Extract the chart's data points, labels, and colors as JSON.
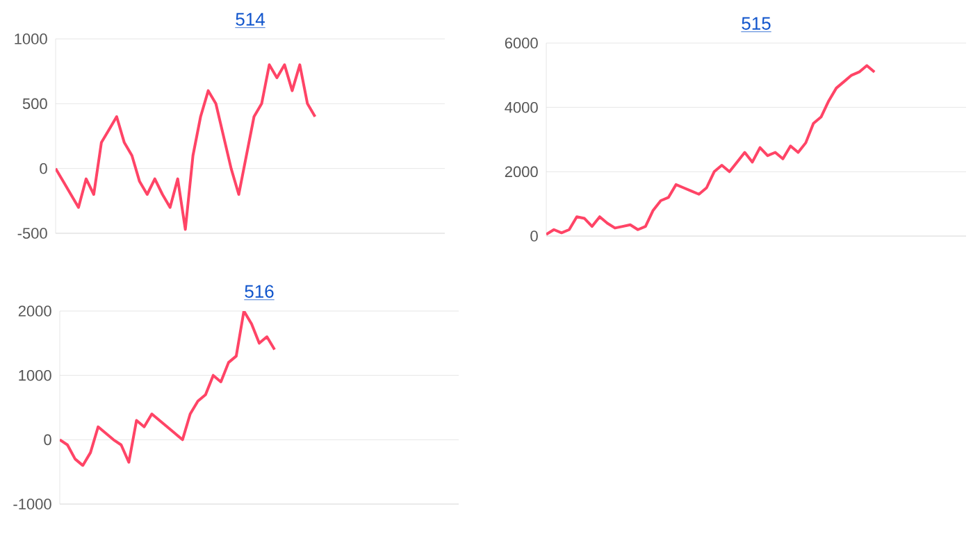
{
  "chart_data": [
    {
      "type": "line",
      "title": "514",
      "categories": [
        null,
        null,
        null,
        null,
        null,
        null,
        null,
        null,
        null,
        null,
        null,
        null,
        null,
        null,
        null,
        null,
        null,
        null,
        null,
        null,
        null,
        null,
        null,
        null,
        null,
        null,
        null,
        null,
        null,
        null,
        null,
        null,
        null,
        null,
        null,
        null,
        null,
        null,
        null,
        null,
        null,
        null,
        null,
        null,
        null,
        null,
        null,
        null,
        null,
        null,
        null,
        null
      ],
      "series": [
        {
          "color": "#ff4466",
          "values": [
            0,
            -100,
            -200,
            -300,
            -80,
            -200,
            200,
            300,
            400,
            200,
            100,
            -100,
            -200,
            -80,
            -200,
            -300,
            -80,
            -470,
            100,
            400,
            600,
            500,
            250,
            0,
            -200,
            100,
            400,
            500,
            800,
            700,
            800,
            600,
            800,
            500,
            400,
            null,
            null,
            null,
            null,
            null,
            null,
            null,
            null,
            null,
            null,
            null,
            null,
            null,
            null,
            null,
            null,
            null
          ]
        }
      ],
      "ylim": [
        -500,
        1000
      ],
      "yticks": [
        -500,
        0,
        500,
        1000
      ],
      "grid": "y",
      "tick_labels": "y"
    },
    {
      "type": "line",
      "title": "515",
      "categories": [
        null,
        null,
        null,
        null,
        null,
        null,
        null,
        null,
        null,
        null,
        null,
        null,
        null,
        null,
        null,
        null,
        null,
        null,
        null,
        null,
        null,
        null,
        null,
        null,
        null,
        null,
        null,
        null,
        null,
        null,
        null,
        null,
        null,
        null,
        null,
        null,
        null,
        null,
        null,
        null,
        null,
        null,
        null,
        null,
        null,
        null,
        null,
        null,
        null,
        null,
        null,
        null,
        null,
        null,
        null,
        null
      ],
      "series": [
        {
          "color": "#ff4466",
          "values": [
            50,
            200,
            100,
            200,
            600,
            550,
            300,
            600,
            400,
            250,
            300,
            350,
            200,
            300,
            800,
            1100,
            1200,
            1600,
            1500,
            1400,
            1300,
            1500,
            2000,
            2200,
            2000,
            2300,
            2600,
            2300,
            2750,
            2500,
            2600,
            2400,
            2800,
            2600,
            2900,
            3500,
            3700,
            4200,
            4600,
            4800,
            5000,
            5100,
            5300,
            5100,
            null,
            null,
            null,
            null,
            null,
            null,
            null,
            null,
            null,
            null,
            null,
            null
          ]
        }
      ],
      "ylim": [
        0,
        6000
      ],
      "yticks": [
        0,
        2000,
        4000,
        6000
      ],
      "grid": "y",
      "tick_labels": "y"
    },
    {
      "type": "line",
      "title": "516",
      "categories": [
        null,
        null,
        null,
        null,
        null,
        null,
        null,
        null,
        null,
        null,
        null,
        null,
        null,
        null,
        null,
        null,
        null,
        null,
        null,
        null,
        null,
        null,
        null,
        null,
        null,
        null,
        null,
        null,
        null,
        null,
        null,
        null,
        null,
        null,
        null,
        null,
        null,
        null,
        null,
        null,
        null,
        null,
        null,
        null,
        null,
        null,
        null,
        null,
        null,
        null,
        null,
        null,
        null
      ],
      "series": [
        {
          "color": "#ff4466",
          "values": [
            0,
            -80,
            -300,
            -400,
            -200,
            200,
            100,
            0,
            -80,
            -350,
            300,
            200,
            400,
            300,
            200,
            100,
            0,
            400,
            600,
            700,
            1000,
            900,
            1200,
            1300,
            2000,
            1800,
            1500,
            1600,
            1400,
            null,
            null,
            null,
            null,
            null,
            null,
            null,
            null,
            null,
            null,
            null,
            null,
            null,
            null,
            null,
            null,
            null,
            null,
            null,
            null,
            null,
            null,
            null,
            null
          ]
        }
      ],
      "ylim": [
        -1000,
        2000
      ],
      "yticks": [
        -1000,
        0,
        1000,
        2000
      ],
      "grid": "y",
      "tick_labels": "y"
    }
  ]
}
